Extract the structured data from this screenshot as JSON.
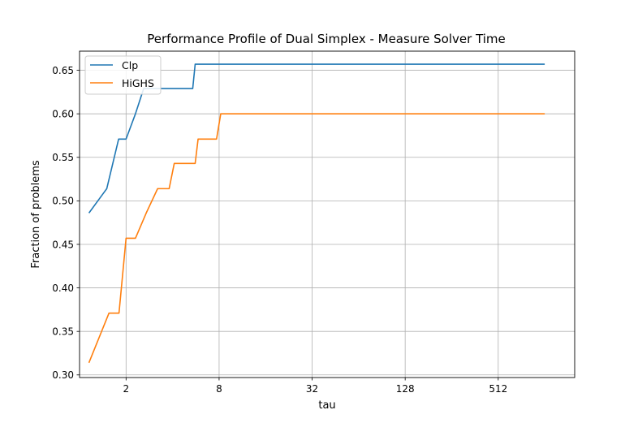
{
  "chart_data": {
    "type": "line",
    "title": "Performance Profile of Dual Simplex - Measure Solver Time",
    "xlabel": "tau",
    "ylabel": "Fraction of problems",
    "x_scale": "log2",
    "xlim": [
      1.0,
      1600
    ],
    "ylim": [
      0.297,
      0.672
    ],
    "x_ticks": [
      2,
      8,
      32,
      128,
      512
    ],
    "x_tick_labels": [
      "2",
      "8",
      "32",
      "128",
      "512"
    ],
    "y_ticks": [
      0.3,
      0.35,
      0.4,
      0.45,
      0.5,
      0.55,
      0.6,
      0.65
    ],
    "y_tick_labels": [
      "0.30",
      "0.35",
      "0.40",
      "0.45",
      "0.50",
      "0.55",
      "0.60",
      "0.65"
    ],
    "grid": true,
    "legend_position": "upper-left",
    "series": [
      {
        "name": "Clp",
        "color": "#1f77b4",
        "points": [
          [
            1.15,
            0.486
          ],
          [
            1.5,
            0.514
          ],
          [
            1.79,
            0.571
          ],
          [
            2.0,
            0.571
          ],
          [
            2.3,
            0.6
          ],
          [
            2.6,
            0.629
          ],
          [
            4.5,
            0.629
          ],
          [
            5.4,
            0.629
          ],
          [
            5.6,
            0.657
          ],
          [
            1024,
            0.657
          ]
        ]
      },
      {
        "name": "HiGHS",
        "color": "#ff7f0e",
        "points": [
          [
            1.15,
            0.314
          ],
          [
            1.55,
            0.371
          ],
          [
            1.8,
            0.371
          ],
          [
            2.0,
            0.457
          ],
          [
            2.3,
            0.457
          ],
          [
            2.7,
            0.486
          ],
          [
            3.2,
            0.514
          ],
          [
            3.8,
            0.514
          ],
          [
            4.1,
            0.543
          ],
          [
            5.6,
            0.543
          ],
          [
            5.85,
            0.571
          ],
          [
            7.7,
            0.571
          ],
          [
            8.2,
            0.6
          ],
          [
            1024,
            0.6
          ]
        ]
      }
    ]
  }
}
